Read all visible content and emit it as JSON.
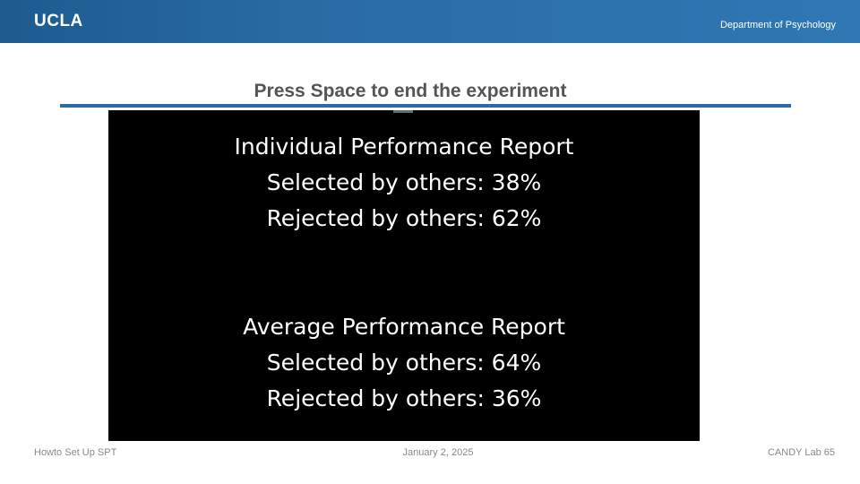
{
  "header": {
    "logo_text": "UCLA",
    "department": "Department of Psychology",
    "color": "#2a6da6"
  },
  "slide": {
    "title": "Press Space to end the experiment"
  },
  "screen": {
    "individual": {
      "heading": "Individual Performance Report",
      "selected": "Selected by others: 38%",
      "rejected": "Rejected by others: 62%"
    },
    "average": {
      "heading": "Average Performance Report",
      "selected": "Selected by others: 64%",
      "rejected": "Rejected by others: 36%"
    }
  },
  "footer": {
    "left": "Howto Set Up SPT",
    "center": "January 2, 2025",
    "right": "CANDY Lab 65"
  }
}
